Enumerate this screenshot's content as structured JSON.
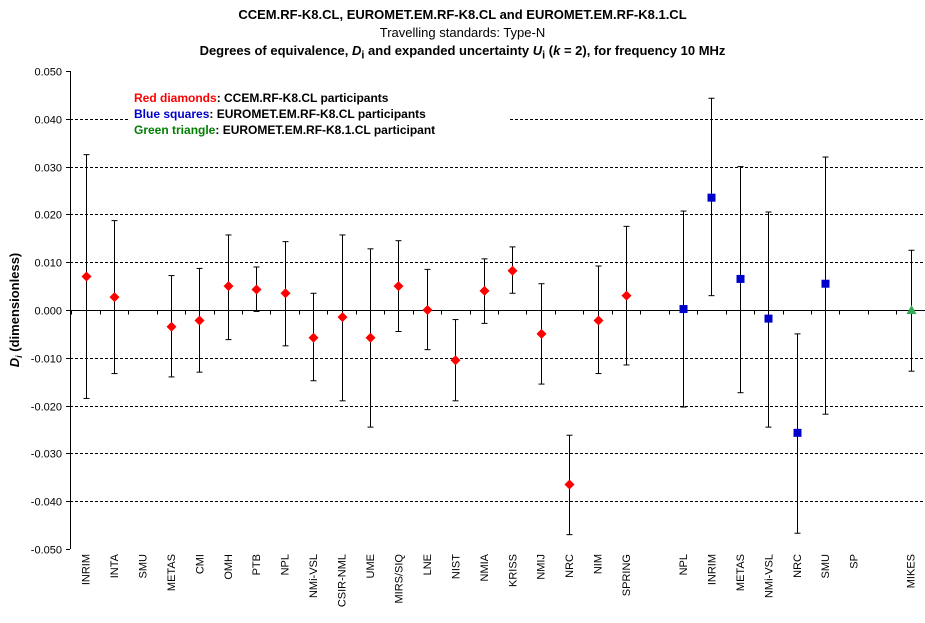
{
  "chart_data": {
    "type": "scatter",
    "title": "CCEM.RF-K8.CL, EUROMET.EM.RF-K8.CL and EUROMET.EM.RF-K8.1.CL",
    "subtitle": "Travelling standards: Type-N",
    "title2_prefix": "Degrees of equivalence, ",
    "title2_D": "D",
    "title2_Dsub": "i",
    "title2_mid": " and expanded uncertainty ",
    "title2_U": "U",
    "title2_Usub": "i",
    "title2_open": " (",
    "title2_k": "k",
    "title2_suffix": " = 2), for frequency 10 MHz",
    "ylabel_D": "D",
    "ylabel_sub": "i",
    "ylabel_rest": " (dimensionless)",
    "ylim": [
      -0.05,
      0.05
    ],
    "yticks": [
      "0.050",
      "0.040",
      "0.030",
      "0.020",
      "0.010",
      "0.000",
      "-0.010",
      "-0.020",
      "-0.030",
      "-0.040",
      "-0.050"
    ],
    "grid": "horizontal dashed",
    "legend_placement": "top-left",
    "legend": [
      {
        "key": "Red diamonds",
        "text": ": CCEM.RF-K8.CL participants",
        "color": "#ff0000"
      },
      {
        "key": "Blue squares",
        "text": ": EUROMET.EM.RF-K8.CL participants",
        "color": "#0000cc"
      },
      {
        "key": "Green triangle",
        "text": ": EUROMET.EM.RF-K8.1.CL participant",
        "color": "#008000"
      }
    ],
    "categories": [
      "INRIM",
      "INTA",
      "SMU",
      "METAS",
      "CMI",
      "OMH",
      "PTB",
      "NPL",
      "NMi-VSL",
      "CSIR-NML",
      "UME",
      "MIRS/SIQ",
      "LNE",
      "NIST",
      "NMIA",
      "KRISS",
      "NMIJ",
      "NRC",
      "NIM",
      "SPRING",
      "",
      "NPL",
      "INRIM",
      "METAS",
      "NMi-VSL",
      "NRC",
      "SMU",
      "SP",
      "",
      "MIKES"
    ],
    "series": [
      {
        "name": "Red diamonds",
        "marker": "diamond",
        "color": "#ff0000",
        "points": [
          {
            "x": "INRIM",
            "y": 0.007,
            "lo": -0.0185,
            "hi": 0.0325
          },
          {
            "x": "INTA",
            "y": 0.0027,
            "lo": -0.0133,
            "hi": 0.0187
          },
          {
            "x": "METAS",
            "y": -0.0035,
            "lo": -0.014,
            "hi": 0.0072
          },
          {
            "x": "CMI",
            "y": -0.0022,
            "lo": -0.013,
            "hi": 0.0087
          },
          {
            "x": "OMH",
            "y": 0.005,
            "lo": -0.0062,
            "hi": 0.0157
          },
          {
            "x": "PTB",
            "y": 0.0043,
            "lo": -0.0003,
            "hi": 0.009
          },
          {
            "x": "NPL",
            "y": 0.0035,
            "lo": -0.0075,
            "hi": 0.0143
          },
          {
            "x": "NMi-VSL",
            "y": -0.0058,
            "lo": -0.0148,
            "hi": 0.0035
          },
          {
            "x": "CSIR-NML",
            "y": -0.0015,
            "lo": -0.019,
            "hi": 0.0157
          },
          {
            "x": "UME",
            "y": -0.0058,
            "lo": -0.0245,
            "hi": 0.0128
          },
          {
            "x": "MIRS/SIQ",
            "y": 0.005,
            "lo": -0.0045,
            "hi": 0.0145
          },
          {
            "x": "LNE",
            "y": 0.0,
            "lo": -0.0083,
            "hi": 0.0085
          },
          {
            "x": "NIST",
            "y": -0.0105,
            "lo": -0.019,
            "hi": -0.002
          },
          {
            "x": "NMIA",
            "y": 0.004,
            "lo": -0.0028,
            "hi": 0.0107
          },
          {
            "x": "KRISS",
            "y": 0.0082,
            "lo": 0.0035,
            "hi": 0.0132
          },
          {
            "x": "NMIJ",
            "y": -0.005,
            "lo": -0.0155,
            "hi": 0.0055
          },
          {
            "x": "NRC",
            "y": -0.0365,
            "lo": -0.047,
            "hi": -0.0262
          },
          {
            "x": "NIM",
            "y": -0.0022,
            "lo": -0.0133,
            "hi": 0.0092
          },
          {
            "x": "SPRING",
            "y": 0.003,
            "lo": -0.0115,
            "hi": 0.0175
          }
        ]
      },
      {
        "name": "Blue squares",
        "marker": "square",
        "color": "#0000cc",
        "points": [
          {
            "xi": 21,
            "y": 0.0002,
            "lo": -0.0203,
            "hi": 0.0207
          },
          {
            "xi": 22,
            "y": 0.0235,
            "lo": 0.003,
            "hi": 0.0443
          },
          {
            "xi": 23,
            "y": 0.0065,
            "lo": -0.0173,
            "hi": 0.03
          },
          {
            "xi": 24,
            "y": -0.0018,
            "lo": -0.0245,
            "hi": 0.0205
          },
          {
            "xi": 25,
            "y": -0.0257,
            "lo": -0.0467,
            "hi": -0.005
          },
          {
            "xi": 26,
            "y": 0.0055,
            "lo": -0.0218,
            "hi": 0.032
          }
        ]
      },
      {
        "name": "Green triangle",
        "marker": "triangle",
        "color": "#33aa55",
        "points": [
          {
            "xi": 29,
            "y": 0.0,
            "lo": -0.0128,
            "hi": 0.0125
          }
        ]
      }
    ]
  }
}
